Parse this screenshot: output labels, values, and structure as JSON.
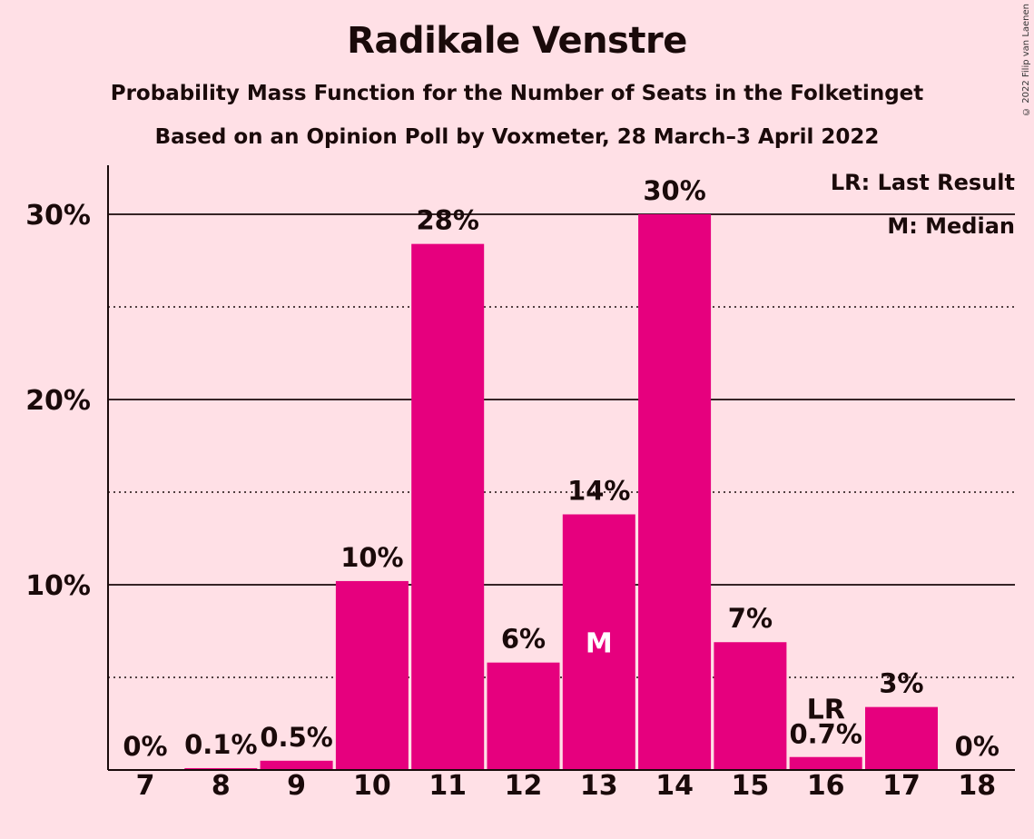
{
  "chart_data": {
    "type": "bar",
    "title": "Radikale Venstre",
    "subtitle": "Probability Mass Function for the Number of Seats in the Folketinget",
    "subtitle2": "Based on an Opinion Poll by Voxmeter, 28 March–3 April 2022",
    "copyright": "© 2022 Filip van Laenen",
    "categories": [
      "7",
      "8",
      "9",
      "10",
      "11",
      "12",
      "13",
      "14",
      "15",
      "16",
      "17",
      "18"
    ],
    "values": [
      0,
      0.1,
      0.5,
      10.2,
      28.4,
      5.8,
      13.8,
      30.0,
      6.9,
      0.7,
      3.4,
      0
    ],
    "data_labels": [
      "0%",
      "0.1%",
      "0.5%",
      "10%",
      "28%",
      "6%",
      "14%",
      "30%",
      "7%",
      "0.7%",
      "3%",
      "0%"
    ],
    "yticks": [
      {
        "value": 10,
        "label": "10%"
      },
      {
        "value": 20,
        "label": "20%"
      },
      {
        "value": 30,
        "label": "30%"
      }
    ],
    "minor_gridlines": [
      5,
      15,
      25
    ],
    "ylim": [
      0,
      32.5
    ],
    "median_seat": "13",
    "median_marker": "M",
    "last_result_seat": "16",
    "last_result_marker": "LR",
    "legend": [
      "LR: Last Result",
      "M: Median"
    ],
    "bar_color": "#E6007E",
    "background": "#FFE0E6"
  }
}
